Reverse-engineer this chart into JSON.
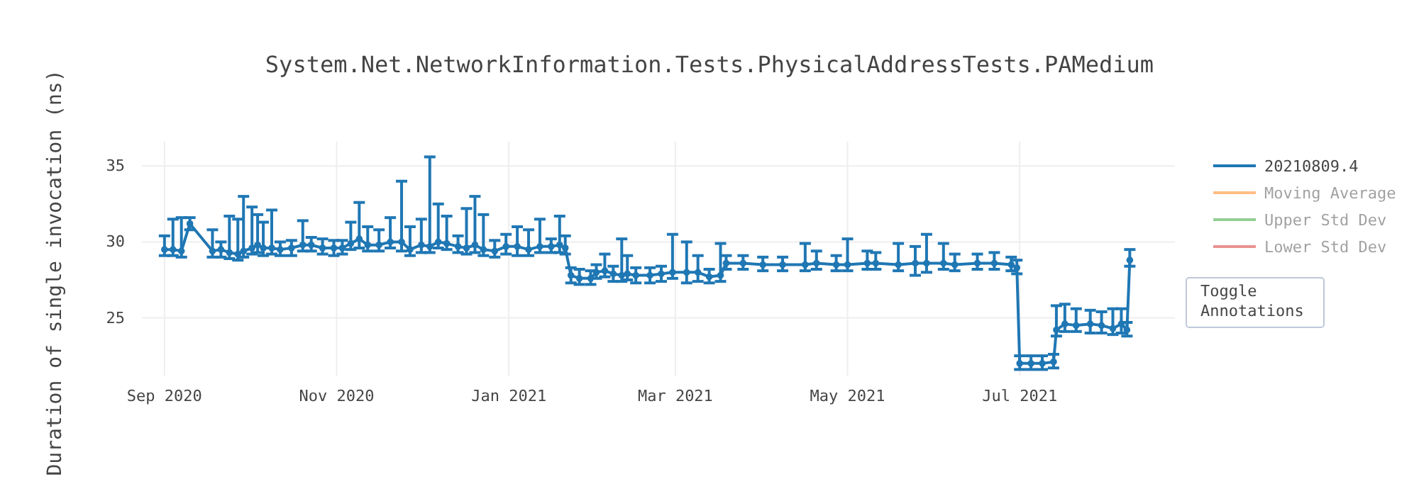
{
  "chart_data": {
    "type": "line",
    "title": "System.Net.NetworkInformation.Tests.PhysicalAddressTests.PAMedium",
    "ylabel": "Duration of single invocation (ns)",
    "x": [
      "2020-09-01",
      "2020-09-04",
      "2020-09-07",
      "2020-09-10",
      "2020-09-18",
      "2020-09-21",
      "2020-09-24",
      "2020-09-27",
      "2020-09-29",
      "2020-10-02",
      "2020-10-04",
      "2020-10-06",
      "2020-10-09",
      "2020-10-12",
      "2020-10-16",
      "2020-10-20",
      "2020-10-23",
      "2020-10-27",
      "2020-10-31",
      "2020-11-03",
      "2020-11-06",
      "2020-11-09",
      "2020-11-12",
      "2020-11-16",
      "2020-11-20",
      "2020-11-24",
      "2020-11-27",
      "2020-12-01",
      "2020-12-04",
      "2020-12-07",
      "2020-12-10",
      "2020-12-14",
      "2020-12-17",
      "2020-12-20",
      "2020-12-23",
      "2020-12-27",
      "2020-12-31",
      "2021-01-04",
      "2021-01-08",
      "2021-01-12",
      "2021-01-16",
      "2021-01-19",
      "2021-01-21",
      "2021-01-23",
      "2021-01-26",
      "2021-01-30",
      "2021-02-01",
      "2021-02-04",
      "2021-02-07",
      "2021-02-10",
      "2021-02-12",
      "2021-02-15",
      "2021-02-20",
      "2021-02-24",
      "2021-02-28",
      "2021-03-05",
      "2021-03-09",
      "2021-03-13",
      "2021-03-17",
      "2021-03-19",
      "2021-03-25",
      "2021-04-01",
      "2021-04-08",
      "2021-04-16",
      "2021-04-20",
      "2021-04-27",
      "2021-05-01",
      "2021-05-08",
      "2021-05-11",
      "2021-05-19",
      "2021-05-25",
      "2021-05-29",
      "2021-06-04",
      "2021-06-08",
      "2021-06-16",
      "2021-06-22",
      "2021-06-28",
      "2021-06-30",
      "2021-07-01",
      "2021-07-05",
      "2021-07-09",
      "2021-07-13",
      "2021-07-14",
      "2021-07-17",
      "2021-07-21",
      "2021-07-26",
      "2021-07-30",
      "2021-08-03",
      "2021-08-06",
      "2021-08-08",
      "2021-08-09"
    ],
    "series": [
      {
        "name": "20210809.4",
        "color": "#1f77b4",
        "values": [
          29.5,
          29.5,
          29.4,
          31.2,
          29.4,
          29.5,
          29.3,
          29.2,
          29.4,
          29.6,
          29.8,
          29.6,
          29.6,
          29.5,
          29.6,
          29.8,
          29.8,
          29.6,
          29.6,
          29.6,
          29.9,
          30.2,
          29.8,
          29.8,
          30.0,
          30.0,
          29.5,
          29.8,
          29.7,
          30.0,
          29.9,
          29.7,
          29.6,
          29.8,
          29.5,
          29.4,
          29.7,
          29.7,
          29.5,
          29.7,
          29.7,
          29.8,
          29.6,
          27.8,
          27.6,
          27.6,
          28.0,
          28.1,
          27.9,
          27.8,
          27.9,
          27.8,
          27.8,
          27.9,
          28.0,
          28.0,
          28.0,
          27.7,
          27.8,
          28.6,
          28.6,
          28.5,
          28.5,
          28.5,
          28.6,
          28.5,
          28.5,
          28.6,
          28.6,
          28.5,
          28.6,
          28.6,
          28.6,
          28.5,
          28.6,
          28.6,
          28.5,
          28.3,
          22.0,
          22.0,
          22.0,
          22.1,
          24.2,
          24.6,
          24.5,
          24.6,
          24.5,
          24.3,
          24.6,
          24.2,
          28.8
        ],
        "errors": [
          [
            29.1,
            30.4
          ],
          [
            29.1,
            31.5
          ],
          [
            29.0,
            31.6
          ],
          [
            30.8,
            31.6
          ],
          [
            29.0,
            30.8
          ],
          [
            29.0,
            30.0
          ],
          [
            28.9,
            31.7
          ],
          [
            28.8,
            31.5
          ],
          [
            29.0,
            33.0
          ],
          [
            29.2,
            32.3
          ],
          [
            29.3,
            31.8
          ],
          [
            29.1,
            31.3
          ],
          [
            29.2,
            32.1
          ],
          [
            29.1,
            30.0
          ],
          [
            29.1,
            30.1
          ],
          [
            29.4,
            31.4
          ],
          [
            29.4,
            30.3
          ],
          [
            29.2,
            30.2
          ],
          [
            29.1,
            30.1
          ],
          [
            29.2,
            30.1
          ],
          [
            29.5,
            31.3
          ],
          [
            29.6,
            32.6
          ],
          [
            29.4,
            31.0
          ],
          [
            29.4,
            30.8
          ],
          [
            29.6,
            31.6
          ],
          [
            29.4,
            34.0
          ],
          [
            29.1,
            31.0
          ],
          [
            29.3,
            31.5
          ],
          [
            29.3,
            35.6
          ],
          [
            29.6,
            32.5
          ],
          [
            29.5,
            31.7
          ],
          [
            29.3,
            30.4
          ],
          [
            29.2,
            32.2
          ],
          [
            29.3,
            33.0
          ],
          [
            29.1,
            31.8
          ],
          [
            29.0,
            30.1
          ],
          [
            29.2,
            30.5
          ],
          [
            29.1,
            31.0
          ],
          [
            29.1,
            30.8
          ],
          [
            29.3,
            31.5
          ],
          [
            29.3,
            30.2
          ],
          [
            29.3,
            31.7
          ],
          [
            29.2,
            30.4
          ],
          [
            27.3,
            28.3
          ],
          [
            27.2,
            28.2
          ],
          [
            27.2,
            28.1
          ],
          [
            27.6,
            28.5
          ],
          [
            27.7,
            29.2
          ],
          [
            27.4,
            28.4
          ],
          [
            27.4,
            30.2
          ],
          [
            27.5,
            29.1
          ],
          [
            27.3,
            28.3
          ],
          [
            27.3,
            28.3
          ],
          [
            27.4,
            28.4
          ],
          [
            27.6,
            30.5
          ],
          [
            27.3,
            30.0
          ],
          [
            27.4,
            29.1
          ],
          [
            27.3,
            28.2
          ],
          [
            27.4,
            29.9
          ],
          [
            28.2,
            29.1
          ],
          [
            28.2,
            29.1
          ],
          [
            28.1,
            29.0
          ],
          [
            28.1,
            29.0
          ],
          [
            28.1,
            29.9
          ],
          [
            28.2,
            29.4
          ],
          [
            28.1,
            29.1
          ],
          [
            28.1,
            30.2
          ],
          [
            28.2,
            29.4
          ],
          [
            28.2,
            29.3
          ],
          [
            28.1,
            29.9
          ],
          [
            27.8,
            29.7
          ],
          [
            28.0,
            30.5
          ],
          [
            28.2,
            29.9
          ],
          [
            28.1,
            29.2
          ],
          [
            28.2,
            29.2
          ],
          [
            28.2,
            29.3
          ],
          [
            28.1,
            29.0
          ],
          [
            27.9,
            28.8
          ],
          [
            21.6,
            22.5
          ],
          [
            21.6,
            22.5
          ],
          [
            21.6,
            22.5
          ],
          [
            21.7,
            22.6
          ],
          [
            23.8,
            25.8
          ],
          [
            24.1,
            25.9
          ],
          [
            24.1,
            25.6
          ],
          [
            24.0,
            25.5
          ],
          [
            24.0,
            25.4
          ],
          [
            23.9,
            25.6
          ],
          [
            24.0,
            25.6
          ],
          [
            23.8,
            24.7
          ],
          [
            28.4,
            29.5
          ]
        ]
      },
      {
        "name": "Moving Average",
        "color": "#ff7f0e",
        "values": [
          null,
          null,
          null,
          null,
          null,
          null,
          null,
          null,
          null,
          null,
          null,
          null,
          null,
          null,
          null,
          null,
          null,
          null,
          null,
          null,
          null,
          null,
          null,
          null,
          null,
          null,
          null,
          null,
          null,
          null,
          null,
          null,
          null,
          null,
          null,
          null,
          null,
          null,
          null,
          null,
          null,
          null,
          null,
          null,
          null,
          null,
          null,
          null,
          null,
          null,
          null,
          null,
          null,
          null,
          null,
          null,
          null,
          null,
          null,
          null,
          null,
          null,
          null,
          null,
          null,
          null,
          null,
          null,
          null,
          null,
          null,
          null,
          null,
          null,
          null,
          null,
          null,
          null,
          null,
          null,
          null,
          null,
          null,
          null,
          null,
          null,
          null,
          null,
          null,
          null,
          null
        ]
      },
      {
        "name": "Upper Std Dev",
        "color": "#2ca02c",
        "values": [
          null,
          null,
          null,
          null,
          null,
          null,
          null,
          null,
          null,
          null,
          null,
          null,
          null,
          null,
          null,
          null,
          null,
          null,
          null,
          null,
          null,
          null,
          null,
          null,
          null,
          null,
          null,
          null,
          null,
          null,
          null,
          null,
          null,
          null,
          null,
          null,
          null,
          null,
          null,
          null,
          null,
          null,
          null,
          null,
          null,
          null,
          null,
          null,
          null,
          null,
          null,
          null,
          null,
          null,
          null,
          null,
          null,
          null,
          null,
          null,
          null,
          null,
          null,
          null,
          null,
          null,
          null,
          null,
          null,
          null,
          null,
          null,
          null,
          null,
          null,
          null,
          null,
          null,
          null,
          null,
          null,
          null,
          null,
          null,
          null,
          null,
          null,
          null,
          null,
          null,
          null
        ]
      },
      {
        "name": "Lower Std Dev",
        "color": "#d62728",
        "values": [
          null,
          null,
          null,
          null,
          null,
          null,
          null,
          null,
          null,
          null,
          null,
          null,
          null,
          null,
          null,
          null,
          null,
          null,
          null,
          null,
          null,
          null,
          null,
          null,
          null,
          null,
          null,
          null,
          null,
          null,
          null,
          null,
          null,
          null,
          null,
          null,
          null,
          null,
          null,
          null,
          null,
          null,
          null,
          null,
          null,
          null,
          null,
          null,
          null,
          null,
          null,
          null,
          null,
          null,
          null,
          null,
          null,
          null,
          null,
          null,
          null,
          null,
          null,
          null,
          null,
          null,
          null,
          null,
          null,
          null,
          null,
          null,
          null,
          null,
          null,
          null,
          null,
          null,
          null,
          null,
          null,
          null,
          null,
          null,
          null,
          null,
          null,
          null,
          null,
          null,
          null
        ]
      }
    ],
    "xlim": [
      "2020-08-24",
      "2021-08-25"
    ],
    "xticks": [
      {
        "value": "2020-09-01",
        "label": "Sep 2020"
      },
      {
        "value": "2020-11-01",
        "label": "Nov 2020"
      },
      {
        "value": "2021-01-01",
        "label": "Jan 2021"
      },
      {
        "value": "2021-03-01",
        "label": "Mar 2021"
      },
      {
        "value": "2021-05-01",
        "label": "May 2021"
      },
      {
        "value": "2021-07-01",
        "label": "Jul 2021"
      }
    ],
    "ylim": [
      21.2,
      36.6
    ],
    "yticks": [
      25,
      30,
      35
    ],
    "grid": true,
    "legend": "top right",
    "marker": "circle",
    "line_style": "solid",
    "annotations": [
      "Toggle Annotations"
    ]
  }
}
